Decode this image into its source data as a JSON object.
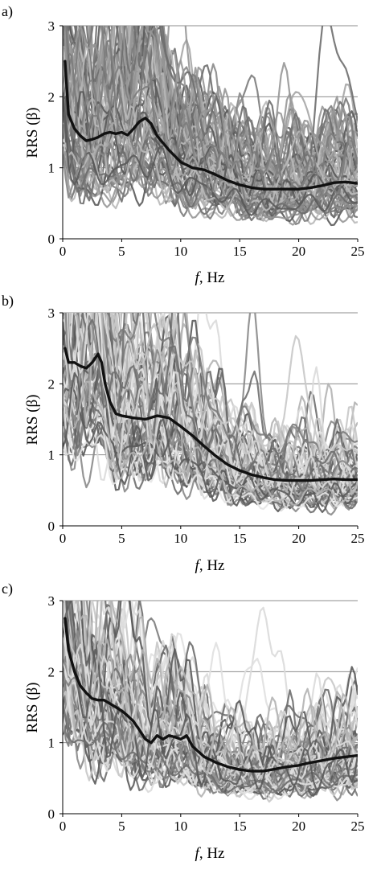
{
  "figure": {
    "background": "#ffffff",
    "axis_color": "#000000",
    "gridline_color": "#8c8c8c",
    "mean_line_color": "#111111"
  },
  "chart_data": [
    {
      "panel_label": "a)",
      "type": "line",
      "xlabel_var": "f",
      "xlabel_unit": ", Hz",
      "ylabel": "RRS (β)",
      "xlim": [
        0,
        25
      ],
      "ylim": [
        0,
        3
      ],
      "xticks": [
        "0",
        "5",
        "10",
        "15",
        "20",
        "25"
      ],
      "yticks": [
        "0",
        "1",
        "2",
        "3"
      ],
      "grid": "horizontal",
      "legend": "none",
      "individual_record_colors": [
        "#8a8a8a",
        "#a6a6a6",
        "#6e6e6e",
        "#b9b9b9",
        "#5a5a5a",
        "#979797",
        "#7c7c7c"
      ],
      "mean_series": {
        "x": [
          0.2,
          0.5,
          1,
          1.5,
          2,
          2.5,
          3,
          3.5,
          4,
          4.5,
          5,
          5.5,
          6,
          6.5,
          7,
          7.5,
          8,
          9,
          10,
          11,
          12,
          13,
          14,
          15,
          16,
          17,
          18,
          19,
          20,
          21,
          22,
          23,
          24,
          25
        ],
        "y": [
          2.5,
          1.75,
          1.55,
          1.45,
          1.38,
          1.4,
          1.43,
          1.48,
          1.5,
          1.48,
          1.5,
          1.46,
          1.55,
          1.65,
          1.7,
          1.62,
          1.45,
          1.25,
          1.08,
          1.0,
          0.97,
          0.9,
          0.82,
          0.76,
          0.72,
          0.7,
          0.7,
          0.7,
          0.7,
          0.72,
          0.75,
          0.79,
          0.8,
          0.78
        ]
      }
    },
    {
      "panel_label": "b)",
      "type": "line",
      "xlabel_var": "f",
      "xlabel_unit": ", Hz",
      "ylabel": "RRS (β)",
      "xlim": [
        0,
        25
      ],
      "ylim": [
        0,
        3
      ],
      "xticks": [
        "0",
        "5",
        "10",
        "15",
        "20",
        "25"
      ],
      "yticks": [
        "0",
        "1",
        "2",
        "3"
      ],
      "grid": "horizontal",
      "legend": "none",
      "individual_record_colors": [
        "#8a8a8a",
        "#c8c8c8",
        "#6e6e6e",
        "#dadada",
        "#5a5a5a",
        "#b3b3b3",
        "#e6e6e6",
        "#7c7c7c"
      ],
      "mean_series": {
        "x": [
          0.2,
          0.5,
          1,
          1.5,
          2,
          2.5,
          3,
          3.3,
          3.6,
          4,
          4.5,
          5,
          6,
          7,
          8,
          9,
          10,
          11,
          12,
          13,
          14,
          15,
          16,
          17,
          18,
          19,
          20,
          21,
          22,
          23,
          24,
          25
        ],
        "y": [
          2.5,
          2.3,
          2.3,
          2.25,
          2.22,
          2.3,
          2.42,
          2.3,
          2.0,
          1.75,
          1.58,
          1.55,
          1.52,
          1.5,
          1.55,
          1.52,
          1.4,
          1.27,
          1.12,
          0.98,
          0.86,
          0.78,
          0.72,
          0.68,
          0.65,
          0.64,
          0.64,
          0.64,
          0.65,
          0.66,
          0.65,
          0.65
        ]
      }
    },
    {
      "panel_label": "c)",
      "type": "line",
      "xlabel_var": "f",
      "xlabel_unit": ", Hz",
      "ylabel": "RRS (β)",
      "xlim": [
        0,
        25
      ],
      "ylim": [
        0,
        3
      ],
      "xticks": [
        "0",
        "5",
        "10",
        "15",
        "20",
        "25"
      ],
      "yticks": [
        "0",
        "1",
        "2",
        "3"
      ],
      "grid": "horizontal",
      "legend": "none",
      "individual_record_colors": [
        "#8a8a8a",
        "#c8c8c8",
        "#6e6e6e",
        "#dadada",
        "#5a5a5a",
        "#b3b3b3",
        "#e0e0e0",
        "#7c7c7c"
      ],
      "mean_series": {
        "x": [
          0.2,
          0.5,
          1,
          1.5,
          2,
          2.5,
          3,
          3.5,
          4,
          4.5,
          5,
          5.5,
          6,
          6.5,
          7,
          7.5,
          8,
          8.5,
          9,
          9.5,
          10,
          10.5,
          11,
          12,
          13,
          14,
          15,
          16,
          17,
          18,
          19,
          20,
          21,
          22,
          23,
          24,
          25
        ],
        "y": [
          2.75,
          2.3,
          2.0,
          1.8,
          1.7,
          1.62,
          1.6,
          1.6,
          1.55,
          1.5,
          1.45,
          1.38,
          1.3,
          1.18,
          1.05,
          1.0,
          1.1,
          1.05,
          1.1,
          1.08,
          1.05,
          1.1,
          0.95,
          0.8,
          0.72,
          0.66,
          0.62,
          0.6,
          0.6,
          0.63,
          0.66,
          0.68,
          0.72,
          0.75,
          0.78,
          0.8,
          0.82
        ]
      }
    }
  ]
}
